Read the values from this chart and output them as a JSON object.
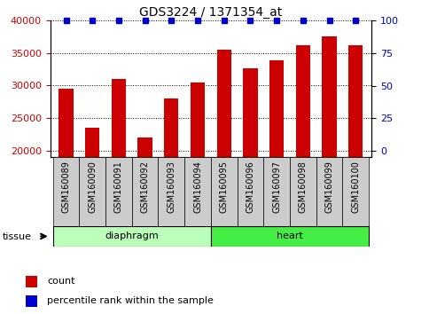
{
  "title": "GDS3224 / 1371354_at",
  "samples": [
    "GSM160089",
    "GSM160090",
    "GSM160091",
    "GSM160092",
    "GSM160093",
    "GSM160094",
    "GSM160095",
    "GSM160096",
    "GSM160097",
    "GSM160098",
    "GSM160099",
    "GSM160100"
  ],
  "counts": [
    29500,
    23500,
    31000,
    22000,
    28000,
    30500,
    35500,
    32700,
    33800,
    36200,
    37500,
    36200
  ],
  "percentiles": [
    100,
    100,
    100,
    100,
    100,
    100,
    100,
    100,
    100,
    100,
    100,
    100
  ],
  "bar_color": "#cc0000",
  "dot_color": "#0000cc",
  "ylim_left": [
    19000,
    40000
  ],
  "ylim_right": [
    -4.75,
    100
  ],
  "yticks_left": [
    20000,
    25000,
    30000,
    35000,
    40000
  ],
  "yticks_right": [
    0,
    25,
    50,
    75,
    100
  ],
  "tissue_groups": [
    {
      "label": "diaphragm",
      "start": 0,
      "end": 6,
      "color": "#bbffbb"
    },
    {
      "label": "heart",
      "start": 6,
      "end": 12,
      "color": "#44ee44"
    }
  ],
  "legend_count_label": "count",
  "legend_pct_label": "percentile rank within the sample",
  "tissue_label": "tissue",
  "background_color": "#ffffff",
  "tick_area_color": "#cccccc"
}
